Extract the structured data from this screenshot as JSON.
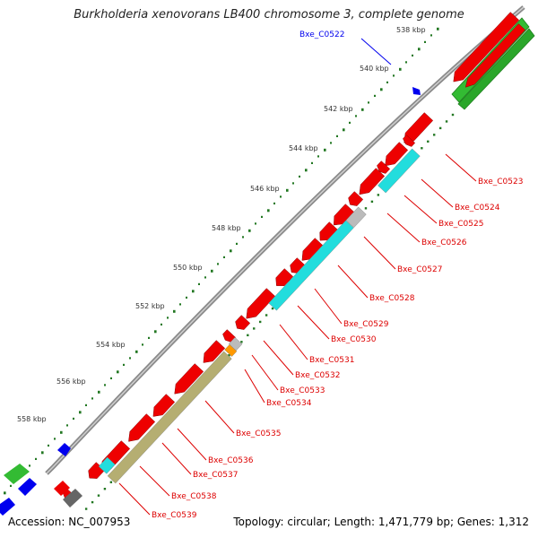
{
  "title": "Burkholderia xenovorans LB400 chromosome 3, complete genome",
  "footer": {
    "accession": "Accession: NC_007953",
    "summary": "Topology: circular; Length: 1,471,779 bp; Genes: 1,312"
  },
  "colors": {
    "cds": "#ee0000",
    "cds_top": "#ff5555",
    "blast": "#22dddd",
    "gray": "#bbbbbb",
    "olive": "#b5ae72",
    "orange": "#ff9900",
    "green": "#33bb33",
    "blue": "#0000ee",
    "label_red": "#dd0000",
    "tick_green": "#227722"
  },
  "scale_labels": [
    {
      "text": "538 kbp"
    },
    {
      "text": "540 kbp"
    },
    {
      "text": "542 kbp"
    },
    {
      "text": "544 kbp"
    },
    {
      "text": "546 kbp"
    },
    {
      "text": "548 kbp"
    },
    {
      "text": "550 kbp"
    },
    {
      "text": "552 kbp"
    },
    {
      "text": "554 kbp"
    },
    {
      "text": "556 kbp"
    },
    {
      "text": "558 kbp"
    }
  ],
  "blue_label": {
    "text": "Bxe_C0522"
  },
  "gene_labels": [
    {
      "text": "Bxe_C0523"
    },
    {
      "text": "Bxe_C0524"
    },
    {
      "text": "Bxe_C0525"
    },
    {
      "text": "Bxe_C0526"
    },
    {
      "text": "Bxe_C0527"
    },
    {
      "text": "Bxe_C0528"
    },
    {
      "text": "Bxe_C0529"
    },
    {
      "text": "Bxe_C0530"
    },
    {
      "text": "Bxe_C0531"
    },
    {
      "text": "Bxe_C0532"
    },
    {
      "text": "Bxe_C0533"
    },
    {
      "text": "Bxe_C0534"
    },
    {
      "text": "Bxe_C0535"
    },
    {
      "text": "Bxe_C0536"
    },
    {
      "text": "Bxe_C0537"
    },
    {
      "text": "Bxe_C0538"
    },
    {
      "text": "Bxe_C0539"
    }
  ]
}
